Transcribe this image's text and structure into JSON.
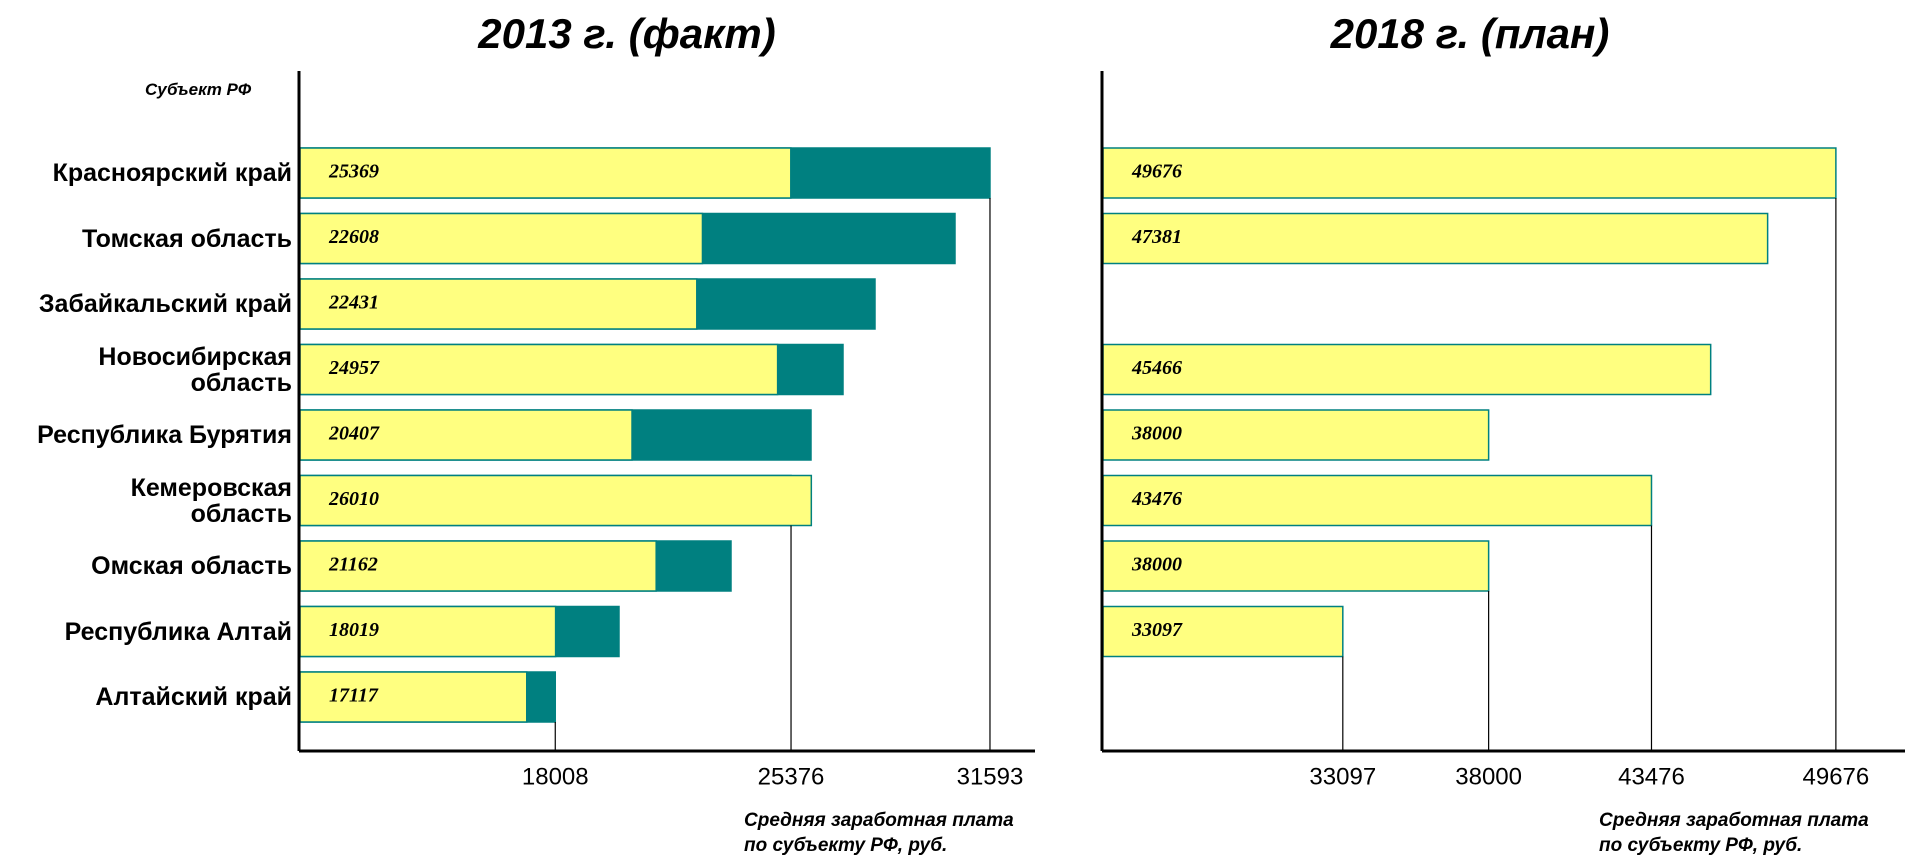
{
  "chart_data": [
    {
      "type": "bar",
      "orientation": "horizontal",
      "title": "2013 г. (факт)",
      "y_label": "Субъект РФ",
      "x_label": "Средняя заработная плата\nпо субъекту РФ, руб.",
      "categories": [
        "Красноярский край",
        "Томская область",
        "Забайкальский край",
        "Новосибирская\nобласть",
        "Республика Бурятия",
        "Кемеровская\nобласть",
        "Омская область",
        "Республика Алтай",
        "Алтайский край"
      ],
      "series": [
        {
          "color": "#008080",
          "values": [
            31593,
            30500,
            28000,
            27000,
            26000,
            25376,
            23500,
            20000,
            18008
          ]
        },
        {
          "color": "#ffff80",
          "values": [
            25369,
            22608,
            22431,
            24957,
            20407,
            26010,
            21162,
            18019,
            17117
          ]
        }
      ],
      "xlim": [
        10000,
        33000
      ],
      "xticks": [
        18008,
        25376,
        31593
      ]
    },
    {
      "type": "bar",
      "orientation": "horizontal",
      "title": "2018 г. (план)",
      "x_label": "Средняя заработная плата\nпо субъекту РФ, руб.",
      "series": [
        {
          "color": "#ffff80",
          "values": [
            49676,
            47381,
            null,
            45466,
            38000,
            43476,
            38000,
            33097,
            null
          ]
        }
      ],
      "xlim": [
        25000,
        52000
      ],
      "xticks": [
        33097,
        38000,
        43476,
        49676
      ]
    }
  ]
}
